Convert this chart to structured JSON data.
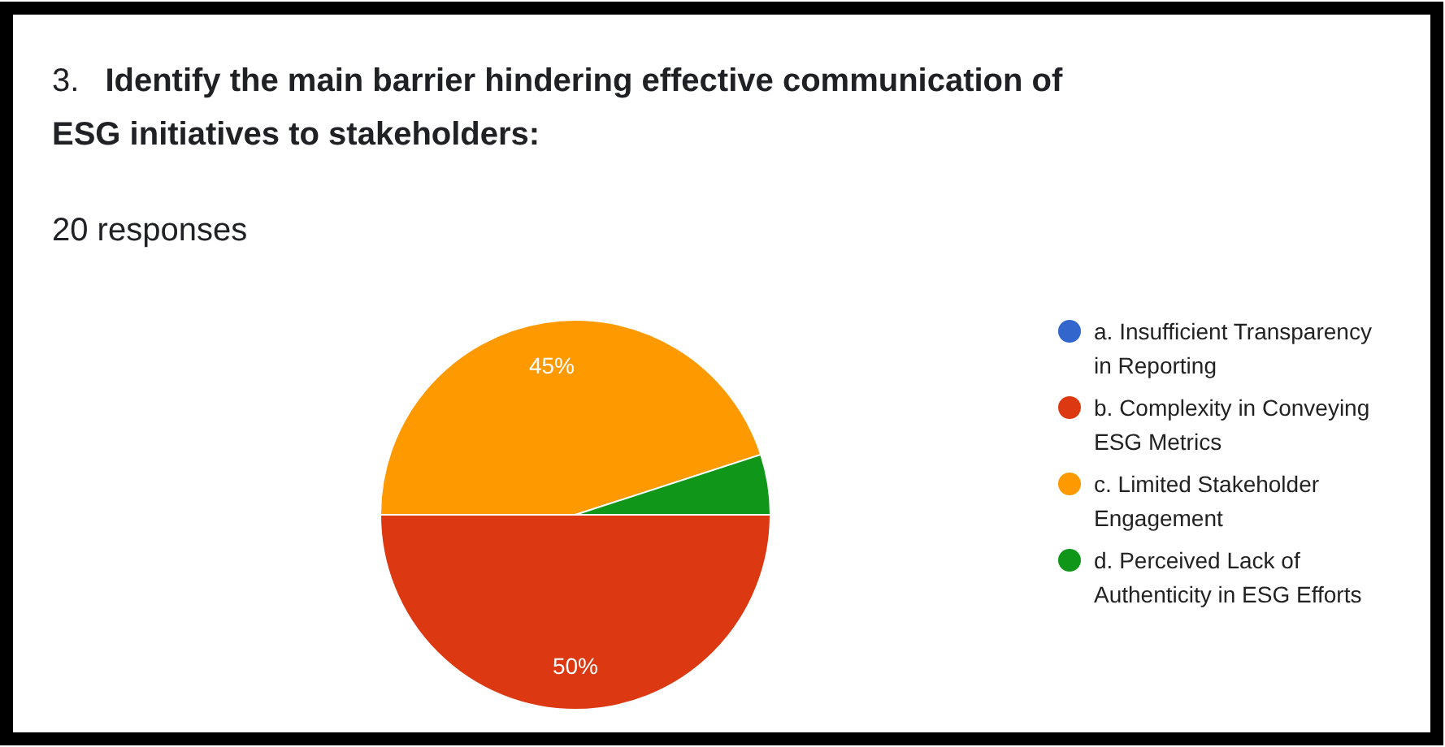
{
  "chart_data": {
    "type": "pie",
    "title": "3. Identify the main barrier hindering effective communication of ESG initiatives to stakeholders:",
    "subtitle": "20 responses",
    "categories": [
      "a. Insufficient Transparency in Reporting",
      "b. Complexity in Conveying ESG Metrics",
      "c. Limited Stakeholder Engagement",
      "d. Perceived Lack of Authenticity in ESG Efforts"
    ],
    "values": [
      0,
      50,
      45,
      5
    ],
    "colors": [
      "#3366cc",
      "#dc3912",
      "#ff9900",
      "#109618"
    ],
    "value_labels": [
      null,
      "50%",
      "45%",
      null
    ],
    "legend": "right"
  }
}
